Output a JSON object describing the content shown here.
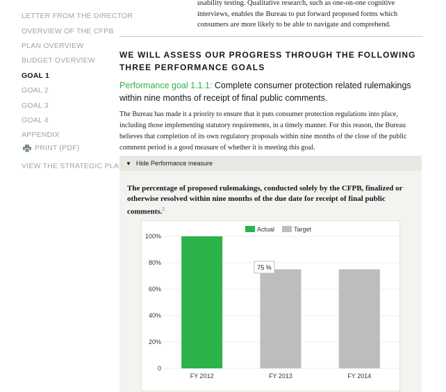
{
  "sidebar": {
    "items": [
      {
        "label": "LETTER FROM THE DIRECTOR",
        "active": false
      },
      {
        "label": "OVERVIEW OF THE CFPB",
        "active": false
      },
      {
        "label": "PLAN OVERVIEW",
        "active": false
      },
      {
        "label": "BUDGET OVERVIEW",
        "active": false
      },
      {
        "label": "GOAL 1",
        "active": true
      },
      {
        "label": "GOAL 2",
        "active": false
      },
      {
        "label": "GOAL 3",
        "active": false
      },
      {
        "label": "GOAL 4",
        "active": false
      },
      {
        "label": "APPENDIX",
        "active": false
      }
    ],
    "print_label": "PRINT (PDF)",
    "strategic_label": "VIEW THE STRATEGIC PLAN"
  },
  "main": {
    "intro_lines": [
      "usability testing. Qualitative research, such as one-on-one cognitive",
      "interviews, enables the Bureau to put forward proposed forms which",
      "consumers are more likely to be able to navigate and comprehend."
    ],
    "section_title": "WE WILL ASSESS OUR PROGRESS THROUGH THE FOLLOWING THREE PERFORMANCE GOALS",
    "goal_label": "Performance goal 1.1.1:",
    "goal_text": "Complete consumer protection related rulemakings within nine months of receipt of final public comments.",
    "goal_description": "The Bureau has made it a priority to ensure that it puts consumer protection regulations into place, including those implementing statutory requirements, in a timely manner. For this reason, the Bureau believes that completion of its own regulatory proposals within nine months of the close of the public comment period is a good measure of whether it is meeting this goal.",
    "toggle_label": "Hide Performance measure",
    "measure_text": "The percentage of proposed rulemakings, conducted solely by the CFPB, finalized or otherwise resolved within nine months of the due date for receipt of final public comments.",
    "measure_footnote": "2"
  },
  "chart_data": {
    "type": "bar",
    "categories": [
      "FY 2012",
      "FY 2013",
      "FY 2014"
    ],
    "series": [
      {
        "name": "Actual",
        "values": [
          100,
          null,
          null
        ],
        "color": "#2cb34a"
      },
      {
        "name": "Target",
        "values": [
          null,
          75,
          75
        ],
        "color": "#bdbdbd"
      }
    ],
    "yticks": [
      "0",
      "20%",
      "40%",
      "60%",
      "80%",
      "100%"
    ],
    "ylim": [
      0,
      100
    ],
    "tooltip": "75 %",
    "legend_position": "top"
  }
}
